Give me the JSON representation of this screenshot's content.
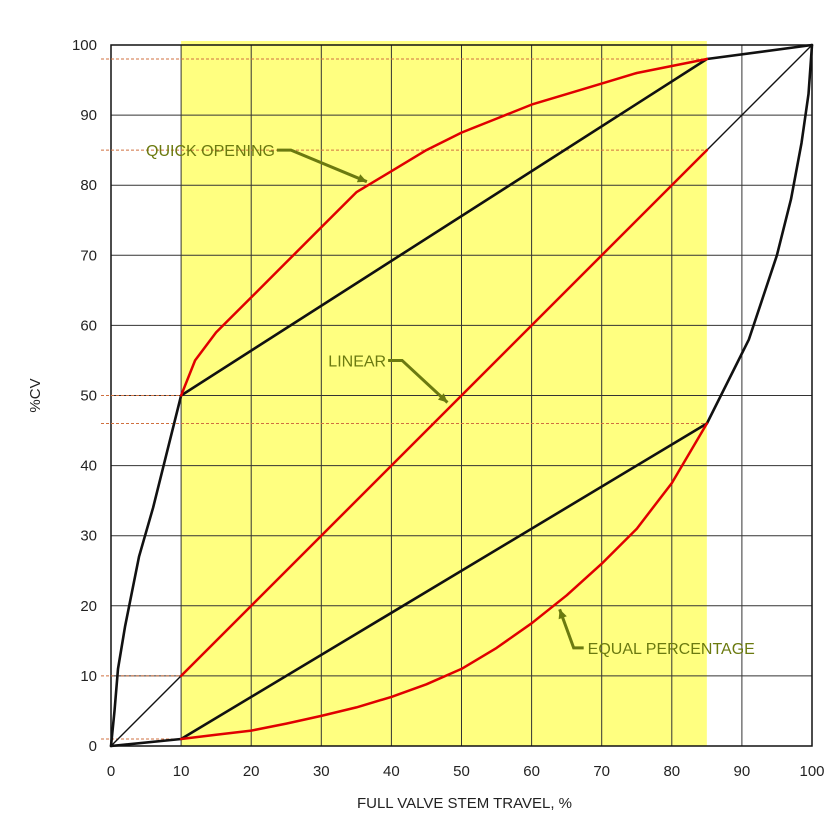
{
  "chart_data": {
    "type": "line",
    "title": "",
    "xlabel": "FULL VALVE STEM TRAVEL, %",
    "ylabel": "%CV",
    "xlim": [
      0,
      100
    ],
    "ylim": [
      0,
      100
    ],
    "x_ticks": [
      0,
      10,
      20,
      30,
      40,
      50,
      60,
      70,
      80,
      90,
      100
    ],
    "y_ticks": [
      0,
      10,
      20,
      30,
      40,
      50,
      60,
      70,
      80,
      90,
      100
    ],
    "grid": true,
    "highlight_region": {
      "x_start": 10,
      "x_end": 85,
      "color": "#ffff80"
    },
    "series": [
      {
        "name": "QUICK OPENING",
        "color": "#111111",
        "points": [
          [
            0,
            0
          ],
          [
            0.5,
            5
          ],
          [
            1,
            11
          ],
          [
            2,
            17
          ],
          [
            3,
            22
          ],
          [
            4,
            27
          ],
          [
            6,
            34
          ],
          [
            8,
            42
          ],
          [
            10,
            50
          ],
          [
            85,
            98
          ],
          [
            100,
            100
          ]
        ]
      },
      {
        "name": "QUICK OPENING (highlighted range)",
        "color": "#e00000",
        "points": [
          [
            10,
            50
          ],
          [
            12,
            55
          ],
          [
            15,
            59
          ],
          [
            20,
            64
          ],
          [
            25,
            69
          ],
          [
            30,
            74
          ],
          [
            35,
            79
          ],
          [
            40,
            82
          ],
          [
            45,
            85
          ],
          [
            50,
            87.5
          ],
          [
            55,
            89.5
          ],
          [
            60,
            91.5
          ],
          [
            65,
            93
          ],
          [
            70,
            94.5
          ],
          [
            75,
            96
          ],
          [
            80,
            97
          ],
          [
            85,
            98
          ]
        ]
      },
      {
        "name": "LINEAR",
        "color": "#111111",
        "points": [
          [
            0,
            0
          ],
          [
            10,
            10
          ],
          [
            85,
            85
          ],
          [
            100,
            100
          ]
        ]
      },
      {
        "name": "LINEAR (highlighted range)",
        "color": "#e00000",
        "points": [
          [
            10,
            10
          ],
          [
            85,
            85
          ]
        ]
      },
      {
        "name": "EQUAL PERCENTAGE",
        "color": "#111111",
        "points": [
          [
            0,
            0
          ],
          [
            10,
            1
          ],
          [
            85,
            46
          ],
          [
            87,
            50
          ],
          [
            89,
            54
          ],
          [
            91,
            58
          ],
          [
            93,
            64
          ],
          [
            95,
            70
          ],
          [
            97,
            78
          ],
          [
            98.5,
            86
          ],
          [
            99.5,
            93
          ],
          [
            100,
            100
          ]
        ]
      },
      {
        "name": "EQUAL PERCENTAGE (highlighted range)",
        "color": "#e00000",
        "points": [
          [
            10,
            1
          ],
          [
            15,
            1.6
          ],
          [
            20,
            2.2
          ],
          [
            25,
            3.2
          ],
          [
            30,
            4.3
          ],
          [
            35,
            5.5
          ],
          [
            40,
            7
          ],
          [
            45,
            8.8
          ],
          [
            50,
            11
          ],
          [
            55,
            14
          ],
          [
            60,
            17.5
          ],
          [
            65,
            21.5
          ],
          [
            70,
            26
          ],
          [
            75,
            31
          ],
          [
            80,
            37.5
          ],
          [
            85,
            46
          ]
        ]
      }
    ],
    "reference_lines": [
      {
        "y": 98,
        "x_to": 85
      },
      {
        "y": 85,
        "x_to": 85
      },
      {
        "y": 50,
        "x_to": 10
      },
      {
        "y": 46,
        "x_to": 85
      },
      {
        "y": 10,
        "x_to": 10
      },
      {
        "y": 1,
        "x_to": 10
      }
    ],
    "annotations": [
      {
        "text": "QUICK OPENING",
        "label_at": [
          5,
          85
        ],
        "arrow_to": [
          36.5,
          80.5
        ]
      },
      {
        "text": "LINEAR",
        "label_at": [
          31,
          55
        ],
        "arrow_to": [
          48,
          49
        ]
      },
      {
        "text": "EQUAL PERCENTAGE",
        "label_at": [
          68,
          14
        ],
        "arrow_to": [
          64,
          19.5
        ]
      }
    ]
  }
}
